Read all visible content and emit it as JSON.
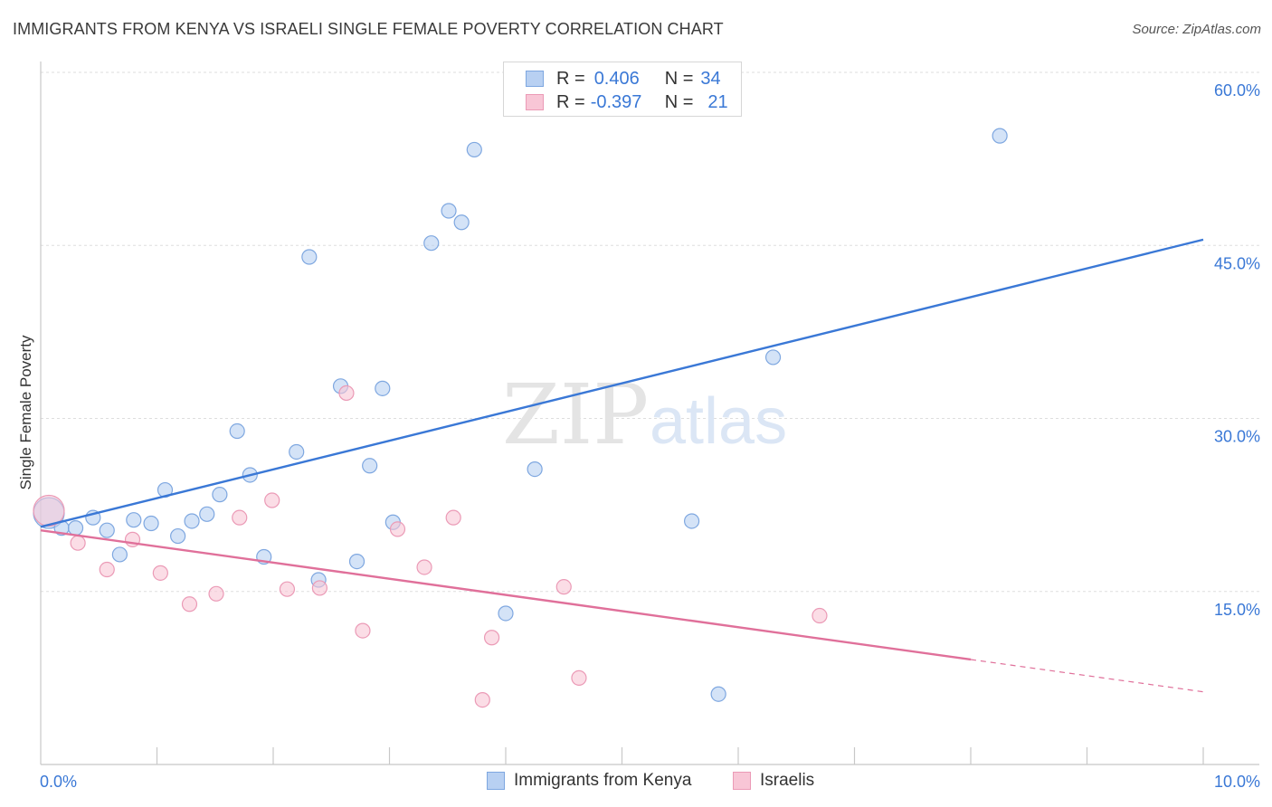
{
  "title": "IMMIGRANTS FROM KENYA VS ISRAELI SINGLE FEMALE POVERTY CORRELATION CHART",
  "source": "Source: ZipAtlas.com",
  "watermark": {
    "zip": "ZIP",
    "atlas": "atlas"
  },
  "colors": {
    "blue": "#3a78d6",
    "blue_fill": "#b8d0f2",
    "blue_stroke": "#7ea7e0",
    "pink": "#e0709a",
    "pink_fill": "#f8c6d6",
    "pink_stroke": "#eb9ab6",
    "grid": "#dddddd",
    "axis_text": "#3a78d6"
  },
  "legend": {
    "rows": [
      {
        "r_label": "R =",
        "r_value": "0.406",
        "n_label": "N =",
        "n_value": "34"
      },
      {
        "r_label": "R =",
        "r_value": "-0.397",
        "n_label": "N =",
        "n_value": "21"
      }
    ]
  },
  "bottom_legend": [
    "Immigrants from Kenya",
    "Israelis"
  ],
  "chart_data": {
    "type": "scatter",
    "title": "IMMIGRANTS FROM KENYA VS ISRAELI SINGLE FEMALE POVERTY CORRELATION CHART",
    "xlabel": "",
    "ylabel": "Single Female Poverty",
    "xlim": [
      0,
      10
    ],
    "ylim": [
      0,
      60
    ],
    "x_tick_labels": [
      "0.0%",
      "10.0%"
    ],
    "y_ticks": [
      15,
      30,
      45,
      60
    ],
    "y_tick_labels": [
      "15.0%",
      "30.0%",
      "45.0%",
      "60.0%"
    ],
    "series": [
      {
        "name": "Immigrants from Kenya",
        "color": "#3a78d6",
        "points": [
          [
            0.07,
            21.8
          ],
          [
            0.18,
            20.5
          ],
          [
            0.3,
            20.5
          ],
          [
            0.45,
            21.4
          ],
          [
            0.57,
            20.3
          ],
          [
            0.68,
            18.2
          ],
          [
            0.8,
            21.2
          ],
          [
            0.95,
            20.9
          ],
          [
            1.07,
            23.8
          ],
          [
            1.18,
            19.8
          ],
          [
            1.3,
            21.1
          ],
          [
            1.43,
            21.7
          ],
          [
            1.54,
            23.4
          ],
          [
            1.69,
            28.9
          ],
          [
            1.8,
            25.1
          ],
          [
            1.92,
            18.0
          ],
          [
            2.2,
            27.1
          ],
          [
            2.31,
            44.0
          ],
          [
            2.39,
            16.0
          ],
          [
            2.58,
            32.8
          ],
          [
            2.72,
            17.6
          ],
          [
            2.83,
            25.9
          ],
          [
            2.94,
            32.6
          ],
          [
            3.03,
            21.0
          ],
          [
            3.36,
            45.2
          ],
          [
            3.51,
            48.0
          ],
          [
            3.62,
            47.0
          ],
          [
            3.73,
            53.3
          ],
          [
            4.0,
            13.1
          ],
          [
            4.25,
            25.6
          ],
          [
            5.6,
            21.1
          ],
          [
            5.83,
            6.1
          ],
          [
            6.3,
            35.3
          ],
          [
            8.25,
            54.5
          ]
        ],
        "trend": {
          "x": [
            0.0,
            10.0
          ],
          "y": [
            20.6,
            45.5
          ]
        }
      },
      {
        "name": "Israelis",
        "color": "#e0709a",
        "points": [
          [
            0.07,
            22.0
          ],
          [
            0.32,
            19.2
          ],
          [
            0.57,
            16.9
          ],
          [
            0.79,
            19.5
          ],
          [
            1.03,
            16.6
          ],
          [
            1.28,
            13.9
          ],
          [
            1.51,
            14.8
          ],
          [
            1.71,
            21.4
          ],
          [
            1.99,
            22.9
          ],
          [
            2.12,
            15.2
          ],
          [
            2.4,
            15.3
          ],
          [
            2.63,
            32.2
          ],
          [
            2.77,
            11.6
          ],
          [
            3.07,
            20.4
          ],
          [
            3.3,
            17.1
          ],
          [
            3.55,
            21.4
          ],
          [
            3.8,
            5.6
          ],
          [
            3.88,
            11.0
          ],
          [
            4.5,
            15.4
          ],
          [
            4.63,
            7.5
          ],
          [
            6.7,
            12.9
          ]
        ],
        "trend": {
          "x": [
            0.0,
            8.0
          ],
          "y": [
            20.3,
            9.1
          ]
        },
        "trend_dashed": {
          "x": [
            8.0,
            10.0
          ],
          "y": [
            9.1,
            6.3
          ]
        }
      }
    ]
  }
}
